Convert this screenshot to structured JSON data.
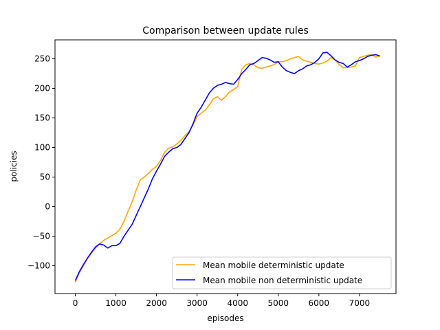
{
  "chart_data": {
    "type": "line",
    "title": "Comparison between update rules",
    "xlabel": "episodes",
    "ylabel": "policies",
    "xlim": [
      -500,
      7900
    ],
    "ylim": [
      -147,
      282
    ],
    "xticks": [
      0,
      1000,
      2000,
      3000,
      4000,
      5000,
      6000,
      7000
    ],
    "yticks": [
      -100,
      -50,
      0,
      50,
      100,
      150,
      200,
      250
    ],
    "grid": false,
    "legend_position": "lower-right",
    "series": [
      {
        "name": "Mean mobile deterministic update",
        "color": "#ffa500",
        "x": [
          0,
          100,
          200,
          300,
          400,
          500,
          600,
          700,
          800,
          900,
          1000,
          1100,
          1200,
          1300,
          1400,
          1500,
          1600,
          1700,
          1800,
          1900,
          2000,
          2100,
          2200,
          2300,
          2400,
          2500,
          2600,
          2700,
          2800,
          2900,
          3000,
          3100,
          3200,
          3300,
          3400,
          3500,
          3600,
          3700,
          3800,
          3900,
          4000,
          4100,
          4200,
          4300,
          4400,
          4500,
          4600,
          4700,
          4800,
          4900,
          5000,
          5100,
          5200,
          5300,
          5400,
          5500,
          5600,
          5700,
          5800,
          5900,
          6000,
          6100,
          6200,
          6300,
          6400,
          6500,
          6600,
          6700,
          6800,
          6900,
          7000,
          7100,
          7200,
          7300,
          7400,
          7500
        ],
        "values": [
          -128,
          -112,
          -100,
          -88,
          -79,
          -70,
          -63,
          -57,
          -53,
          -49,
          -45,
          -38,
          -25,
          -8,
          8,
          28,
          45,
          50,
          56,
          63,
          68,
          78,
          92,
          99,
          101,
          106,
          112,
          120,
          127,
          138,
          152,
          158,
          163,
          172,
          182,
          186,
          180,
          186,
          194,
          198,
          203,
          232,
          240,
          242,
          240,
          235,
          234,
          236,
          238,
          240,
          245,
          245,
          247,
          250,
          252,
          254,
          248,
          246,
          244,
          242,
          241,
          243,
          246,
          252,
          248,
          240,
          235,
          235,
          236,
          238,
          252,
          254,
          256,
          257,
          253,
          254
        ]
      },
      {
        "name": "Mean mobile non deterministic update",
        "color": "#0000ff",
        "x": [
          0,
          100,
          200,
          300,
          400,
          500,
          600,
          700,
          800,
          900,
          1000,
          1100,
          1200,
          1300,
          1400,
          1500,
          1600,
          1700,
          1800,
          1900,
          2000,
          2100,
          2200,
          2300,
          2400,
          2500,
          2600,
          2700,
          2800,
          2900,
          3000,
          3100,
          3200,
          3300,
          3400,
          3500,
          3600,
          3700,
          3800,
          3900,
          4000,
          4100,
          4200,
          4300,
          4400,
          4500,
          4600,
          4700,
          4800,
          4900,
          5000,
          5100,
          5200,
          5300,
          5400,
          5500,
          5600,
          5700,
          5800,
          5900,
          6000,
          6100,
          6200,
          6300,
          6400,
          6500,
          6600,
          6700,
          6800,
          6900,
          7000,
          7100,
          7200,
          7300,
          7400,
          7500
        ],
        "values": [
          -125,
          -110,
          -98,
          -87,
          -77,
          -68,
          -63,
          -65,
          -70,
          -66,
          -66,
          -62,
          -50,
          -40,
          -30,
          -15,
          0,
          15,
          30,
          47,
          60,
          72,
          85,
          92,
          98,
          100,
          105,
          115,
          125,
          140,
          158,
          168,
          180,
          192,
          200,
          205,
          207,
          210,
          208,
          207,
          215,
          225,
          232,
          240,
          242,
          247,
          252,
          251,
          248,
          244,
          245,
          236,
          230,
          227,
          225,
          230,
          233,
          238,
          240,
          244,
          250,
          260,
          261,
          255,
          248,
          244,
          242,
          236,
          240,
          245,
          247,
          250,
          254,
          256,
          257,
          255
        ]
      }
    ]
  }
}
